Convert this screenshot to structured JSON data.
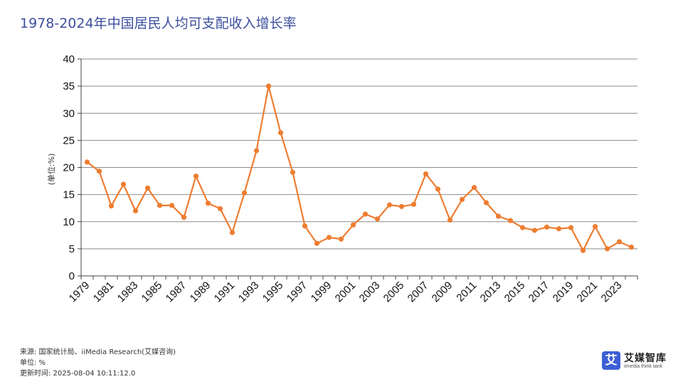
{
  "title": "1978-2024年中国居民人均可支配收入增长率",
  "footer": {
    "source": "来源: 国家统计局、iiMedia Research(艾媒咨询)",
    "unit": "单位: %",
    "updated": "更新时间: 2025-08-04 10:11:12.0"
  },
  "logo": {
    "glyph": "艾",
    "name": "艾媒智库",
    "subtitle": "iimedia think tank",
    "color": "#3d5fd6"
  },
  "chart_data": {
    "type": "line",
    "title": "",
    "xlabel": "",
    "ylabel": "(单位:%)",
    "ylim": [
      0,
      40
    ],
    "yticks": [
      0,
      5,
      10,
      15,
      20,
      25,
      30,
      35,
      40
    ],
    "grid": true,
    "legend": "none",
    "line_color": "#ee7d31",
    "x": [
      1979,
      1980,
      1981,
      1982,
      1983,
      1984,
      1985,
      1986,
      1987,
      1988,
      1989,
      1990,
      1991,
      1992,
      1993,
      1994,
      1995,
      1996,
      1997,
      1998,
      1999,
      2000,
      2001,
      2002,
      2003,
      2004,
      2005,
      2006,
      2007,
      2008,
      2009,
      2010,
      2011,
      2012,
      2013,
      2014,
      2015,
      2016,
      2017,
      2018,
      2019,
      2020,
      2021,
      2022,
      2023,
      2024
    ],
    "xtick_labels": [
      "1979",
      "1981",
      "1983",
      "1985",
      "1987",
      "1989",
      "1991",
      "1993",
      "1995",
      "1997",
      "1999",
      "2001",
      "2003",
      "2005",
      "2007",
      "2009",
      "2011",
      "2013",
      "2015",
      "2017",
      "2019",
      "2021",
      "2023"
    ],
    "values": [
      21.0,
      19.3,
      12.9,
      16.9,
      12.0,
      16.2,
      13.0,
      13.0,
      10.8,
      18.4,
      13.4,
      12.4,
      8.0,
      15.3,
      23.1,
      35.0,
      26.4,
      19.1,
      9.2,
      6.0,
      7.1,
      6.8,
      9.4,
      11.4,
      10.5,
      13.1,
      12.8,
      13.2,
      18.8,
      16.0,
      10.3,
      14.1,
      16.3,
      13.5,
      11.0,
      10.2,
      8.9,
      8.4,
      9.0,
      8.7,
      8.9,
      4.7,
      9.1,
      5.0,
      6.3,
      5.3
    ]
  }
}
